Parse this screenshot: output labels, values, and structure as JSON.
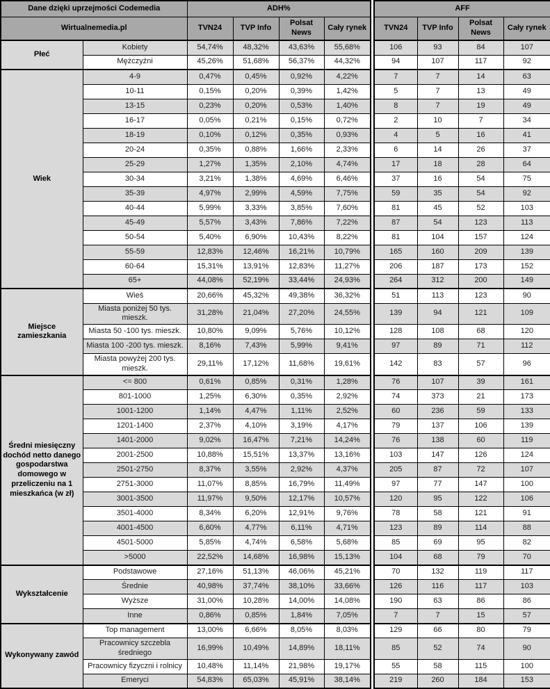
{
  "header": {
    "credit": "Dane dzięki uprzejmości Codemedia",
    "brand": "Wirtualnemedia.pl",
    "group_adh": "ADH%",
    "group_aff": "AFF",
    "channels": [
      "TVN24",
      "TVP Info",
      "Polsat News",
      "Cały rynek"
    ]
  },
  "colors": {
    "header_bg": "#a8a8a8",
    "stripe_bg": "#d9d9d9",
    "row_bg": "#ffffff",
    "border": "#000000",
    "text": "#1a1a1a"
  },
  "chart_data": {
    "type": "table",
    "title": "Dane dzięki uprzejmości Codemedia",
    "source_label": "Wirtualnemedia.pl",
    "column_groups": [
      "ADH%",
      "AFF"
    ],
    "columns": [
      "TVN24",
      "TVP Info",
      "Polsat News",
      "Cały rynek"
    ],
    "sections": [
      {
        "category": "Płeć",
        "rows": [
          {
            "label": "Kobiety",
            "adh": [
              "54,74%",
              "48,32%",
              "43,63%",
              "55,68%"
            ],
            "aff": [
              106,
              93,
              84,
              107
            ]
          },
          {
            "label": "Mężczyźni",
            "adh": [
              "45,26%",
              "51,68%",
              "56,37%",
              "44,32%"
            ],
            "aff": [
              94,
              107,
              117,
              92
            ]
          }
        ]
      },
      {
        "category": "Wiek",
        "rows": [
          {
            "label": "4-9",
            "adh": [
              "0,47%",
              "0,45%",
              "0,92%",
              "4,22%"
            ],
            "aff": [
              7,
              7,
              14,
              63
            ]
          },
          {
            "label": "10-11",
            "adh": [
              "0,15%",
              "0,20%",
              "0,39%",
              "1,42%"
            ],
            "aff": [
              5,
              7,
              13,
              49
            ]
          },
          {
            "label": "13-15",
            "adh": [
              "0,23%",
              "0,20%",
              "0,53%",
              "1,40%"
            ],
            "aff": [
              8,
              7,
              19,
              49
            ]
          },
          {
            "label": "16-17",
            "adh": [
              "0,05%",
              "0,21%",
              "0,15%",
              "0,72%"
            ],
            "aff": [
              2,
              10,
              7,
              34
            ]
          },
          {
            "label": "18-19",
            "adh": [
              "0,10%",
              "0,12%",
              "0,35%",
              "0,93%"
            ],
            "aff": [
              4,
              5,
              16,
              41
            ]
          },
          {
            "label": "20-24",
            "adh": [
              "0,35%",
              "0,88%",
              "1,66%",
              "2,33%"
            ],
            "aff": [
              6,
              14,
              26,
              37
            ]
          },
          {
            "label": "25-29",
            "adh": [
              "1,27%",
              "1,35%",
              "2,10%",
              "4,74%"
            ],
            "aff": [
              17,
              18,
              28,
              64
            ]
          },
          {
            "label": "30-34",
            "adh": [
              "3,21%",
              "1,38%",
              "4,69%",
              "6,46%"
            ],
            "aff": [
              37,
              16,
              54,
              75
            ]
          },
          {
            "label": "35-39",
            "adh": [
              "4,97%",
              "2,99%",
              "4,59%",
              "7,75%"
            ],
            "aff": [
              59,
              35,
              54,
              92
            ]
          },
          {
            "label": "40-44",
            "adh": [
              "5,99%",
              "3,33%",
              "3,85%",
              "7,60%"
            ],
            "aff": [
              81,
              45,
              52,
              103
            ]
          },
          {
            "label": "45-49",
            "adh": [
              "5,57%",
              "3,43%",
              "7,86%",
              "7,22%"
            ],
            "aff": [
              87,
              54,
              123,
              113
            ]
          },
          {
            "label": "50-54",
            "adh": [
              "5,40%",
              "6,90%",
              "10,43%",
              "8,22%"
            ],
            "aff": [
              81,
              104,
              157,
              124
            ]
          },
          {
            "label": "55-59",
            "adh": [
              "12,83%",
              "12,46%",
              "16,21%",
              "10,79%"
            ],
            "aff": [
              165,
              160,
              209,
              139
            ]
          },
          {
            "label": "60-64",
            "adh": [
              "15,31%",
              "13,91%",
              "12,83%",
              "11,27%"
            ],
            "aff": [
              206,
              187,
              173,
              152
            ]
          },
          {
            "label": "65+",
            "adh": [
              "44,08%",
              "52,19%",
              "33,44%",
              "24,93%"
            ],
            "aff": [
              264,
              312,
              200,
              149
            ]
          }
        ]
      },
      {
        "category": "Miejsce zamieszkania",
        "rows": [
          {
            "label": "Wieś",
            "adh": [
              "20,66%",
              "45,32%",
              "49,38%",
              "36,32%"
            ],
            "aff": [
              51,
              113,
              123,
              90
            ]
          },
          {
            "label": "Miasta poniżej 50 tys. mieszk.",
            "adh": [
              "31,28%",
              "21,04%",
              "27,20%",
              "24,55%"
            ],
            "aff": [
              139,
              94,
              121,
              109
            ]
          },
          {
            "label": "Miasta 50 -100 tys. mieszk.",
            "adh": [
              "10,80%",
              "9,09%",
              "5,76%",
              "10,12%"
            ],
            "aff": [
              128,
              108,
              68,
              120
            ]
          },
          {
            "label": "Miasta 100 -200 tys. mieszk.",
            "adh": [
              "8,16%",
              "7,43%",
              "5,99%",
              "9,41%"
            ],
            "aff": [
              97,
              89,
              71,
              112
            ]
          },
          {
            "label": "Miasta powyżej 200 tys. mieszk.",
            "adh": [
              "29,11%",
              "17,12%",
              "11,68%",
              "19,61%"
            ],
            "aff": [
              142,
              83,
              57,
              96
            ]
          }
        ]
      },
      {
        "category": "Średni miesięczny dochód netto danego gospodarstwa domowego w przeliczeniu na 1 mieszkańca (w zł)",
        "rows": [
          {
            "label": "<= 800",
            "adh": [
              "0,61%",
              "0,85%",
              "0,31%",
              "1,28%"
            ],
            "aff": [
              76,
              107,
              39,
              161
            ]
          },
          {
            "label": "801-1000",
            "adh": [
              "1,25%",
              "6,30%",
              "0,35%",
              "2,92%"
            ],
            "aff": [
              74,
              373,
              21,
              173
            ]
          },
          {
            "label": "1001-1200",
            "adh": [
              "1,14%",
              "4,47%",
              "1,11%",
              "2,52%"
            ],
            "aff": [
              60,
              236,
              59,
              133
            ]
          },
          {
            "label": "1201-1400",
            "adh": [
              "2,37%",
              "4,10%",
              "3,19%",
              "4,17%"
            ],
            "aff": [
              79,
              137,
              106,
              139
            ]
          },
          {
            "label": "1401-2000",
            "adh": [
              "9,02%",
              "16,47%",
              "7,21%",
              "14,24%"
            ],
            "aff": [
              76,
              138,
              60,
              119
            ]
          },
          {
            "label": "2001-2500",
            "adh": [
              "10,88%",
              "15,51%",
              "13,37%",
              "13,16%"
            ],
            "aff": [
              103,
              147,
              126,
              124
            ]
          },
          {
            "label": "2501-2750",
            "adh": [
              "8,37%",
              "3,55%",
              "2,92%",
              "4,37%"
            ],
            "aff": [
              205,
              87,
              72,
              107
            ]
          },
          {
            "label": "2751-3000",
            "adh": [
              "11,07%",
              "8,85%",
              "16,79%",
              "11,49%"
            ],
            "aff": [
              97,
              77,
              147,
              100
            ]
          },
          {
            "label": "3001-3500",
            "adh": [
              "11,97%",
              "9,50%",
              "12,17%",
              "10,57%"
            ],
            "aff": [
              120,
              95,
              122,
              106
            ]
          },
          {
            "label": "3501-4000",
            "adh": [
              "8,34%",
              "6,20%",
              "12,91%",
              "9,76%"
            ],
            "aff": [
              78,
              58,
              121,
              91
            ]
          },
          {
            "label": "4001-4500",
            "adh": [
              "6,60%",
              "4,77%",
              "6,11%",
              "4,71%"
            ],
            "aff": [
              123,
              89,
              114,
              88
            ]
          },
          {
            "label": "4501-5000",
            "adh": [
              "5,85%",
              "4,74%",
              "6,58%",
              "5,68%"
            ],
            "aff": [
              85,
              69,
              95,
              82
            ]
          },
          {
            "label": ">5000",
            "adh": [
              "22,52%",
              "14,68%",
              "16,98%",
              "15,13%"
            ],
            "aff": [
              104,
              68,
              79,
              70
            ]
          }
        ]
      },
      {
        "category": "Wykształcenie",
        "rows": [
          {
            "label": "Podstawowe",
            "adh": [
              "27,16%",
              "51,13%",
              "46,06%",
              "45,21%"
            ],
            "aff": [
              70,
              132,
              119,
              117
            ]
          },
          {
            "label": "Średnie",
            "adh": [
              "40,98%",
              "37,74%",
              "38,10%",
              "33,66%"
            ],
            "aff": [
              126,
              116,
              117,
              103
            ]
          },
          {
            "label": "Wyższe",
            "adh": [
              "31,00%",
              "10,28%",
              "14,00%",
              "14,08%"
            ],
            "aff": [
              190,
              63,
              86,
              86
            ]
          },
          {
            "label": "Inne",
            "adh": [
              "0,86%",
              "0,85%",
              "1,84%",
              "7,05%"
            ],
            "aff": [
              7,
              7,
              15,
              57
            ]
          }
        ]
      },
      {
        "category": "Wykonywany zawód",
        "rows": [
          {
            "label": "Top management",
            "adh": [
              "13,00%",
              "6,66%",
              "8,05%",
              "8,03%"
            ],
            "aff": [
              129,
              66,
              80,
              79
            ]
          },
          {
            "label": "Pracownicy szczebla średniego",
            "adh": [
              "16,99%",
              "10,49%",
              "14,89%",
              "18,11%"
            ],
            "aff": [
              85,
              52,
              74,
              90
            ]
          },
          {
            "label": "Pracownicy fizyczni i rolnicy",
            "adh": [
              "10,48%",
              "11,14%",
              "21,98%",
              "19,17%"
            ],
            "aff": [
              55,
              58,
              115,
              100
            ]
          },
          {
            "label": "Emeryci",
            "adh": [
              "54,83%",
              "65,03%",
              "45,91%",
              "38,14%"
            ],
            "aff": [
              219,
              260,
              184,
              153
            ]
          }
        ]
      }
    ]
  }
}
